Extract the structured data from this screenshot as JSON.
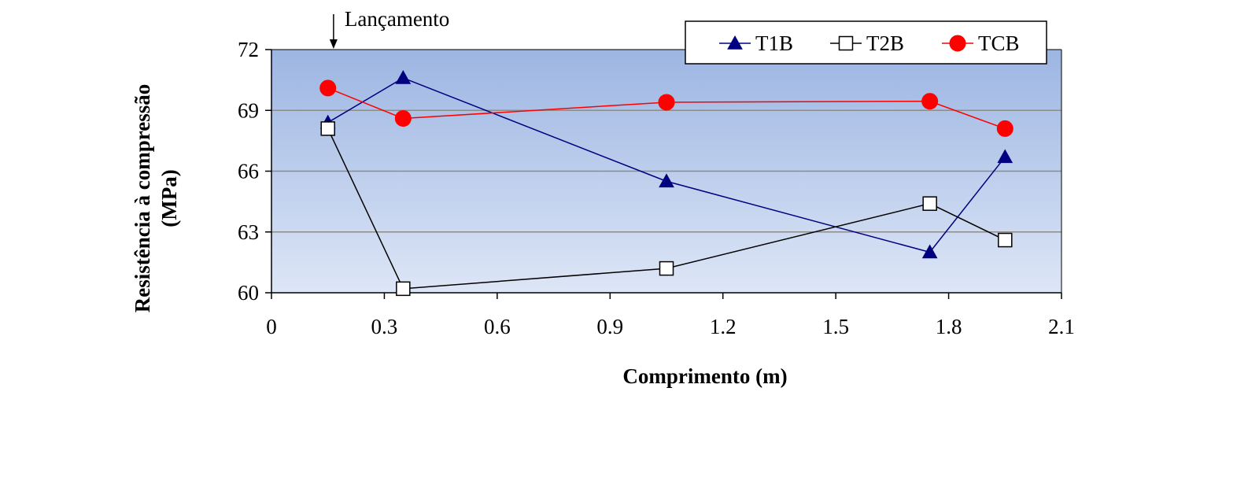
{
  "chart_data": {
    "type": "line",
    "xlabel": "Comprimento (m)",
    "ylabel_lines": [
      "Resistência à compressão",
      "(MPa)"
    ],
    "xlim": [
      0,
      2.1
    ],
    "ylim": [
      60,
      72
    ],
    "xticks": [
      "0",
      "0.3",
      "0.6",
      "0.9",
      "1.2",
      "1.5",
      "1.8",
      "2.1"
    ],
    "yticks": [
      "60",
      "63",
      "66",
      "69",
      "72"
    ],
    "grid": "horizontal",
    "legend_position": "top-right",
    "annotation": {
      "text": "Lançamento",
      "x": 0.165
    },
    "series": [
      {
        "name": "T1B",
        "marker": "triangle",
        "color": "#000080",
        "x": [
          0.15,
          0.35,
          1.05,
          1.75,
          1.95
        ],
        "y": [
          68.4,
          70.6,
          65.5,
          62.0,
          66.7
        ]
      },
      {
        "name": "T2B",
        "marker": "square",
        "color": "#000000",
        "x": [
          0.15,
          0.35,
          1.05,
          1.75,
          1.95
        ],
        "y": [
          68.1,
          60.2,
          61.2,
          64.4,
          62.6
        ]
      },
      {
        "name": "TCB",
        "marker": "circle",
        "color": "#ff0000",
        "x": [
          0.15,
          0.35,
          1.05,
          1.75,
          1.95
        ],
        "y": [
          70.1,
          68.6,
          69.4,
          69.45,
          68.1
        ]
      }
    ]
  }
}
